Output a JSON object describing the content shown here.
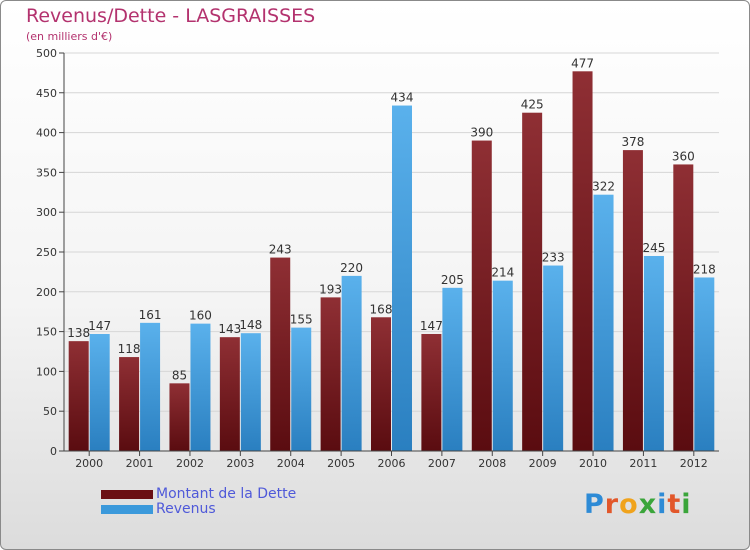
{
  "header": {
    "title": "Revenus/Dette - LASGRAISSES",
    "subtitle": "(en milliers d'€)"
  },
  "legend": {
    "dette_label": "Montant de la Dette",
    "revenus_label": "Revenus"
  },
  "brand": {
    "letters": [
      "P",
      "r",
      "o",
      "x",
      "i",
      "t",
      "i"
    ],
    "colors": [
      "#2e8bd6",
      "#e2572a",
      "#f0a31c",
      "#3aa53a",
      "#2e8bd6",
      "#e2572a",
      "#3aa53a"
    ]
  },
  "colors": {
    "dette": "#7a1a1f",
    "revenus": "#3b99db",
    "title": "#b3326e",
    "legend_text": "#4f59d9"
  },
  "chart_data": {
    "type": "bar",
    "title": "Revenus/Dette - LASGRAISSES",
    "subtitle": "(en milliers d'€)",
    "categories": [
      "2000",
      "2001",
      "2002",
      "2003",
      "2004",
      "2005",
      "2006",
      "2007",
      "2008",
      "2009",
      "2010",
      "2011",
      "2012"
    ],
    "series": [
      {
        "name": "Montant de la Dette",
        "values": [
          138,
          118,
          85,
          143,
          243,
          193,
          168,
          147,
          390,
          425,
          477,
          378,
          360
        ]
      },
      {
        "name": "Revenus",
        "values": [
          147,
          161,
          160,
          148,
          155,
          220,
          434,
          205,
          214,
          233,
          322,
          245,
          218
        ]
      }
    ],
    "ylim": [
      0,
      500
    ],
    "yticks": [
      0,
      50,
      100,
      150,
      200,
      250,
      300,
      350,
      400,
      450,
      500
    ],
    "grid": true,
    "legend_position": "bottom-left"
  }
}
